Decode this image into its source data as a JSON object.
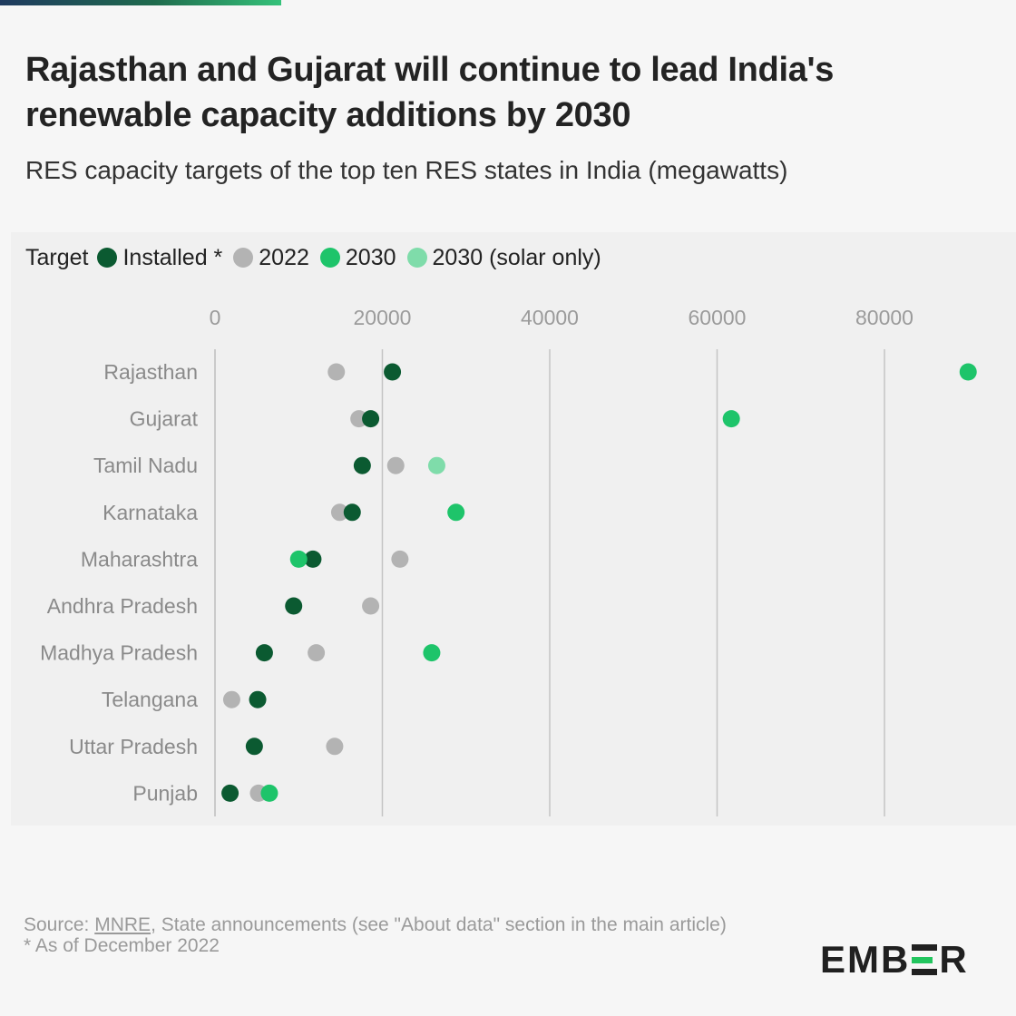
{
  "title": "Rajasthan and Gujarat will continue to lead India's renewable capacity additions by 2030",
  "subtitle": "RES capacity targets of the top ten RES states in India (megawatts)",
  "legend": {
    "title": "Target",
    "items": [
      {
        "label": "Installed *",
        "color": "#0b5a31"
      },
      {
        "label": "2022",
        "color": "#b3b3b3"
      },
      {
        "label": "2030",
        "color": "#1ec46a"
      },
      {
        "label": "2030 (solar only)",
        "color": "#7fdcaa"
      }
    ]
  },
  "chart_data": {
    "type": "scatter",
    "orientation": "horizontal-dot-plot",
    "categories": [
      "Rajasthan",
      "Gujarat",
      "Tamil Nadu",
      "Karnataka",
      "Maharashtra",
      "Andhra Pradesh",
      "Madhya Pradesh",
      "Telangana",
      "Uttar Pradesh",
      "Punjab"
    ],
    "x_ticks": [
      0,
      20000,
      40000,
      60000,
      80000
    ],
    "x_tick_labels": [
      "0",
      "20000",
      "40000",
      "60000",
      "80000"
    ],
    "xlim": [
      0,
      90000
    ],
    "grid": true,
    "series": [
      {
        "name": "Installed *",
        "color": "#0b5a31",
        "values": [
          21200,
          18600,
          17600,
          16400,
          11700,
          9400,
          5900,
          5100,
          4700,
          1800
        ]
      },
      {
        "name": "2022",
        "color": "#b3b3b3",
        "values": [
          14500,
          17200,
          21600,
          14900,
          22100,
          18600,
          12100,
          2000,
          14300,
          5200
        ]
      },
      {
        "name": "2030",
        "color": "#1ec46a",
        "values": [
          90000,
          61700,
          null,
          28800,
          10000,
          null,
          25900,
          null,
          null,
          6500
        ]
      },
      {
        "name": "2030 (solar only)",
        "color": "#7fdcaa",
        "values": [
          null,
          null,
          26500,
          null,
          null,
          null,
          null,
          null,
          null,
          null
        ]
      }
    ]
  },
  "footer": {
    "source_prefix": "Source: ",
    "source_link": "MNRE",
    "source_rest": ", State announcements (see \"About data\" section in the main article)",
    "note": "* As of December 2022"
  },
  "logo": {
    "part1": "EMB",
    "part2": "R"
  }
}
